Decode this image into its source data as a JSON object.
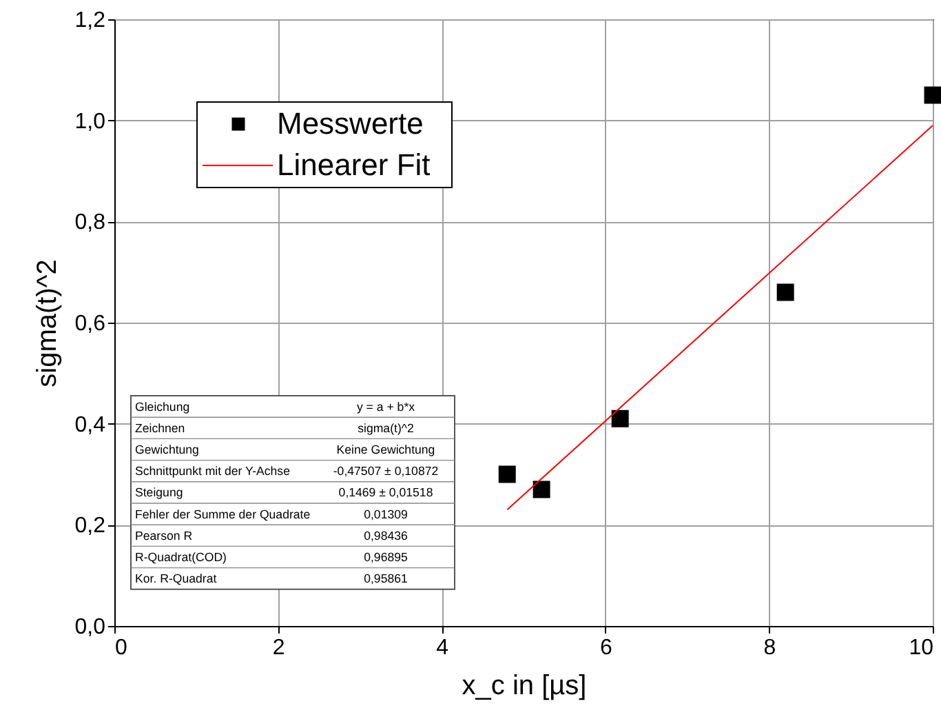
{
  "chart_data": {
    "type": "scatter",
    "xlabel": "x_c in [µs]",
    "ylabel": "sigma(t)^2",
    "xlim": [
      0,
      10
    ],
    "xticks": [
      0,
      2,
      4,
      6,
      8,
      10
    ],
    "ylim": [
      0,
      1.2
    ],
    "yticks": [
      {
        "value": 0,
        "label": "0,0"
      },
      {
        "value": 0.2,
        "label": "0,2"
      },
      {
        "value": 0.4,
        "label": "0,4"
      },
      {
        "value": 0.6,
        "label": "0,6"
      },
      {
        "value": 0.8,
        "label": "0,8"
      },
      {
        "value": 1.0,
        "label": "1,0"
      },
      {
        "value": 1.2,
        "label": "1,2"
      }
    ],
    "grid": true,
    "legend": "top left",
    "series": [
      {
        "name": "Messwerte",
        "marker": "square",
        "color": "#000000",
        "x": [
          4.8,
          5.22,
          6.18,
          8.2,
          10
        ],
        "values": [
          0.3,
          0.27,
          0.41,
          0.66,
          1.05
        ]
      },
      {
        "name": "Linearer Fit",
        "type": "line",
        "color": "#ff0000",
        "x": [
          4.8,
          10
        ],
        "values": [
          0.23,
          0.99
        ]
      }
    ],
    "annotations": [
      "Gleichung",
      "y = a + b*x",
      "Zeichnen",
      "sigma(t)^2",
      "Gewichtung",
      "Keine Gewichtung",
      "Schnittpunkt mit der Y-Achse",
      "-0,47507 ± 0,10872",
      "Steigung",
      "0,1469 ± 0,01518",
      "Fehler der Summe der Quadrate",
      "0,01309",
      "Pearson R",
      "0,98436",
      "R-Quadrat(COD)",
      "0,96895",
      "Kor. R-Quadrat",
      "0,95861"
    ]
  }
}
